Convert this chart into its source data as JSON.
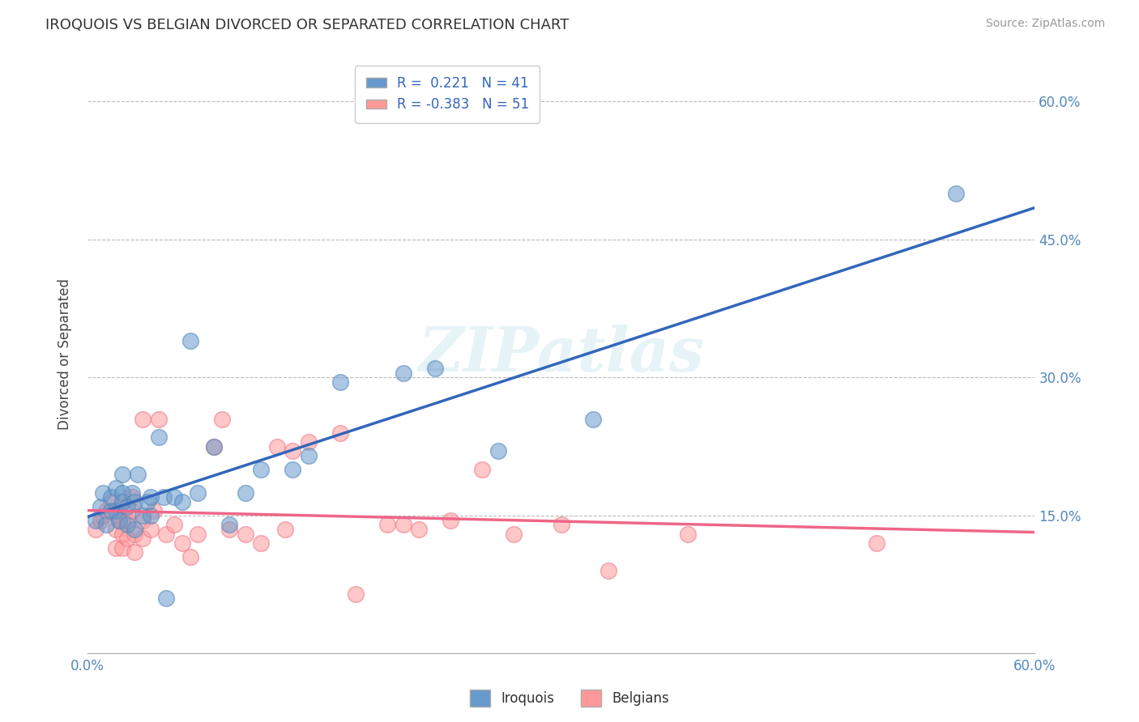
{
  "title": "IROQUOIS VS BELGIAN DIVORCED OR SEPARATED CORRELATION CHART",
  "source": "Source: ZipAtlas.com",
  "ylabel": "Divorced or Separated",
  "x_min": 0.0,
  "x_max": 0.6,
  "y_min": 0.0,
  "y_max": 0.65,
  "x_ticks": [
    0.0,
    0.1,
    0.2,
    0.3,
    0.4,
    0.5,
    0.6
  ],
  "x_tick_labels_bottom": [
    "0.0%",
    "",
    "",
    "",
    "",
    "",
    "60.0%"
  ],
  "y_ticks": [
    0.15,
    0.3,
    0.45,
    0.6
  ],
  "y_tick_labels": [
    "15.0%",
    "30.0%",
    "45.0%",
    "60.0%"
  ],
  "legend_labels": [
    "Iroquois",
    "Belgians"
  ],
  "legend_r": [
    "0.221",
    "-0.383"
  ],
  "legend_n": [
    "41",
    "51"
  ],
  "iroquois_color": "#6699CC",
  "iroquois_edge_color": "#5588BB",
  "belgian_color": "#FF9999",
  "belgian_edge_color": "#EE7788",
  "iroquois_line_color": "#3366BB",
  "belgian_line_color": "#EE6688",
  "watermark": "ZIPatlas",
  "grid_color": "#BBBBBB",
  "iroquois_x": [
    0.005,
    0.008,
    0.01,
    0.012,
    0.015,
    0.015,
    0.018,
    0.018,
    0.02,
    0.022,
    0.022,
    0.022,
    0.025,
    0.025,
    0.028,
    0.03,
    0.03,
    0.032,
    0.035,
    0.038,
    0.04,
    0.04,
    0.045,
    0.048,
    0.05,
    0.055,
    0.06,
    0.065,
    0.07,
    0.08,
    0.09,
    0.1,
    0.11,
    0.13,
    0.14,
    0.16,
    0.2,
    0.22,
    0.26,
    0.32,
    0.55
  ],
  "iroquois_y": [
    0.145,
    0.16,
    0.175,
    0.14,
    0.155,
    0.17,
    0.155,
    0.18,
    0.145,
    0.165,
    0.175,
    0.195,
    0.14,
    0.16,
    0.175,
    0.135,
    0.165,
    0.195,
    0.15,
    0.165,
    0.15,
    0.17,
    0.235,
    0.17,
    0.06,
    0.17,
    0.165,
    0.34,
    0.175,
    0.225,
    0.14,
    0.175,
    0.2,
    0.2,
    0.215,
    0.295,
    0.305,
    0.31,
    0.22,
    0.255,
    0.5
  ],
  "belgian_x": [
    0.005,
    0.008,
    0.01,
    0.012,
    0.015,
    0.018,
    0.018,
    0.02,
    0.02,
    0.022,
    0.022,
    0.022,
    0.022,
    0.025,
    0.025,
    0.028,
    0.028,
    0.03,
    0.03,
    0.035,
    0.035,
    0.035,
    0.04,
    0.042,
    0.045,
    0.05,
    0.055,
    0.06,
    0.065,
    0.07,
    0.08,
    0.085,
    0.09,
    0.1,
    0.11,
    0.12,
    0.125,
    0.13,
    0.14,
    0.16,
    0.17,
    0.19,
    0.2,
    0.21,
    0.23,
    0.25,
    0.27,
    0.3,
    0.33,
    0.38,
    0.5
  ],
  "belgian_y": [
    0.135,
    0.145,
    0.15,
    0.155,
    0.165,
    0.115,
    0.135,
    0.145,
    0.155,
    0.115,
    0.13,
    0.145,
    0.165,
    0.125,
    0.145,
    0.155,
    0.17,
    0.11,
    0.13,
    0.125,
    0.145,
    0.255,
    0.135,
    0.155,
    0.255,
    0.13,
    0.14,
    0.12,
    0.105,
    0.13,
    0.225,
    0.255,
    0.135,
    0.13,
    0.12,
    0.225,
    0.135,
    0.22,
    0.23,
    0.24,
    0.065,
    0.14,
    0.14,
    0.135,
    0.145,
    0.2,
    0.13,
    0.14,
    0.09,
    0.13,
    0.12
  ],
  "background_color": "#FFFFFF",
  "plot_bg_color": "#FFFFFF"
}
